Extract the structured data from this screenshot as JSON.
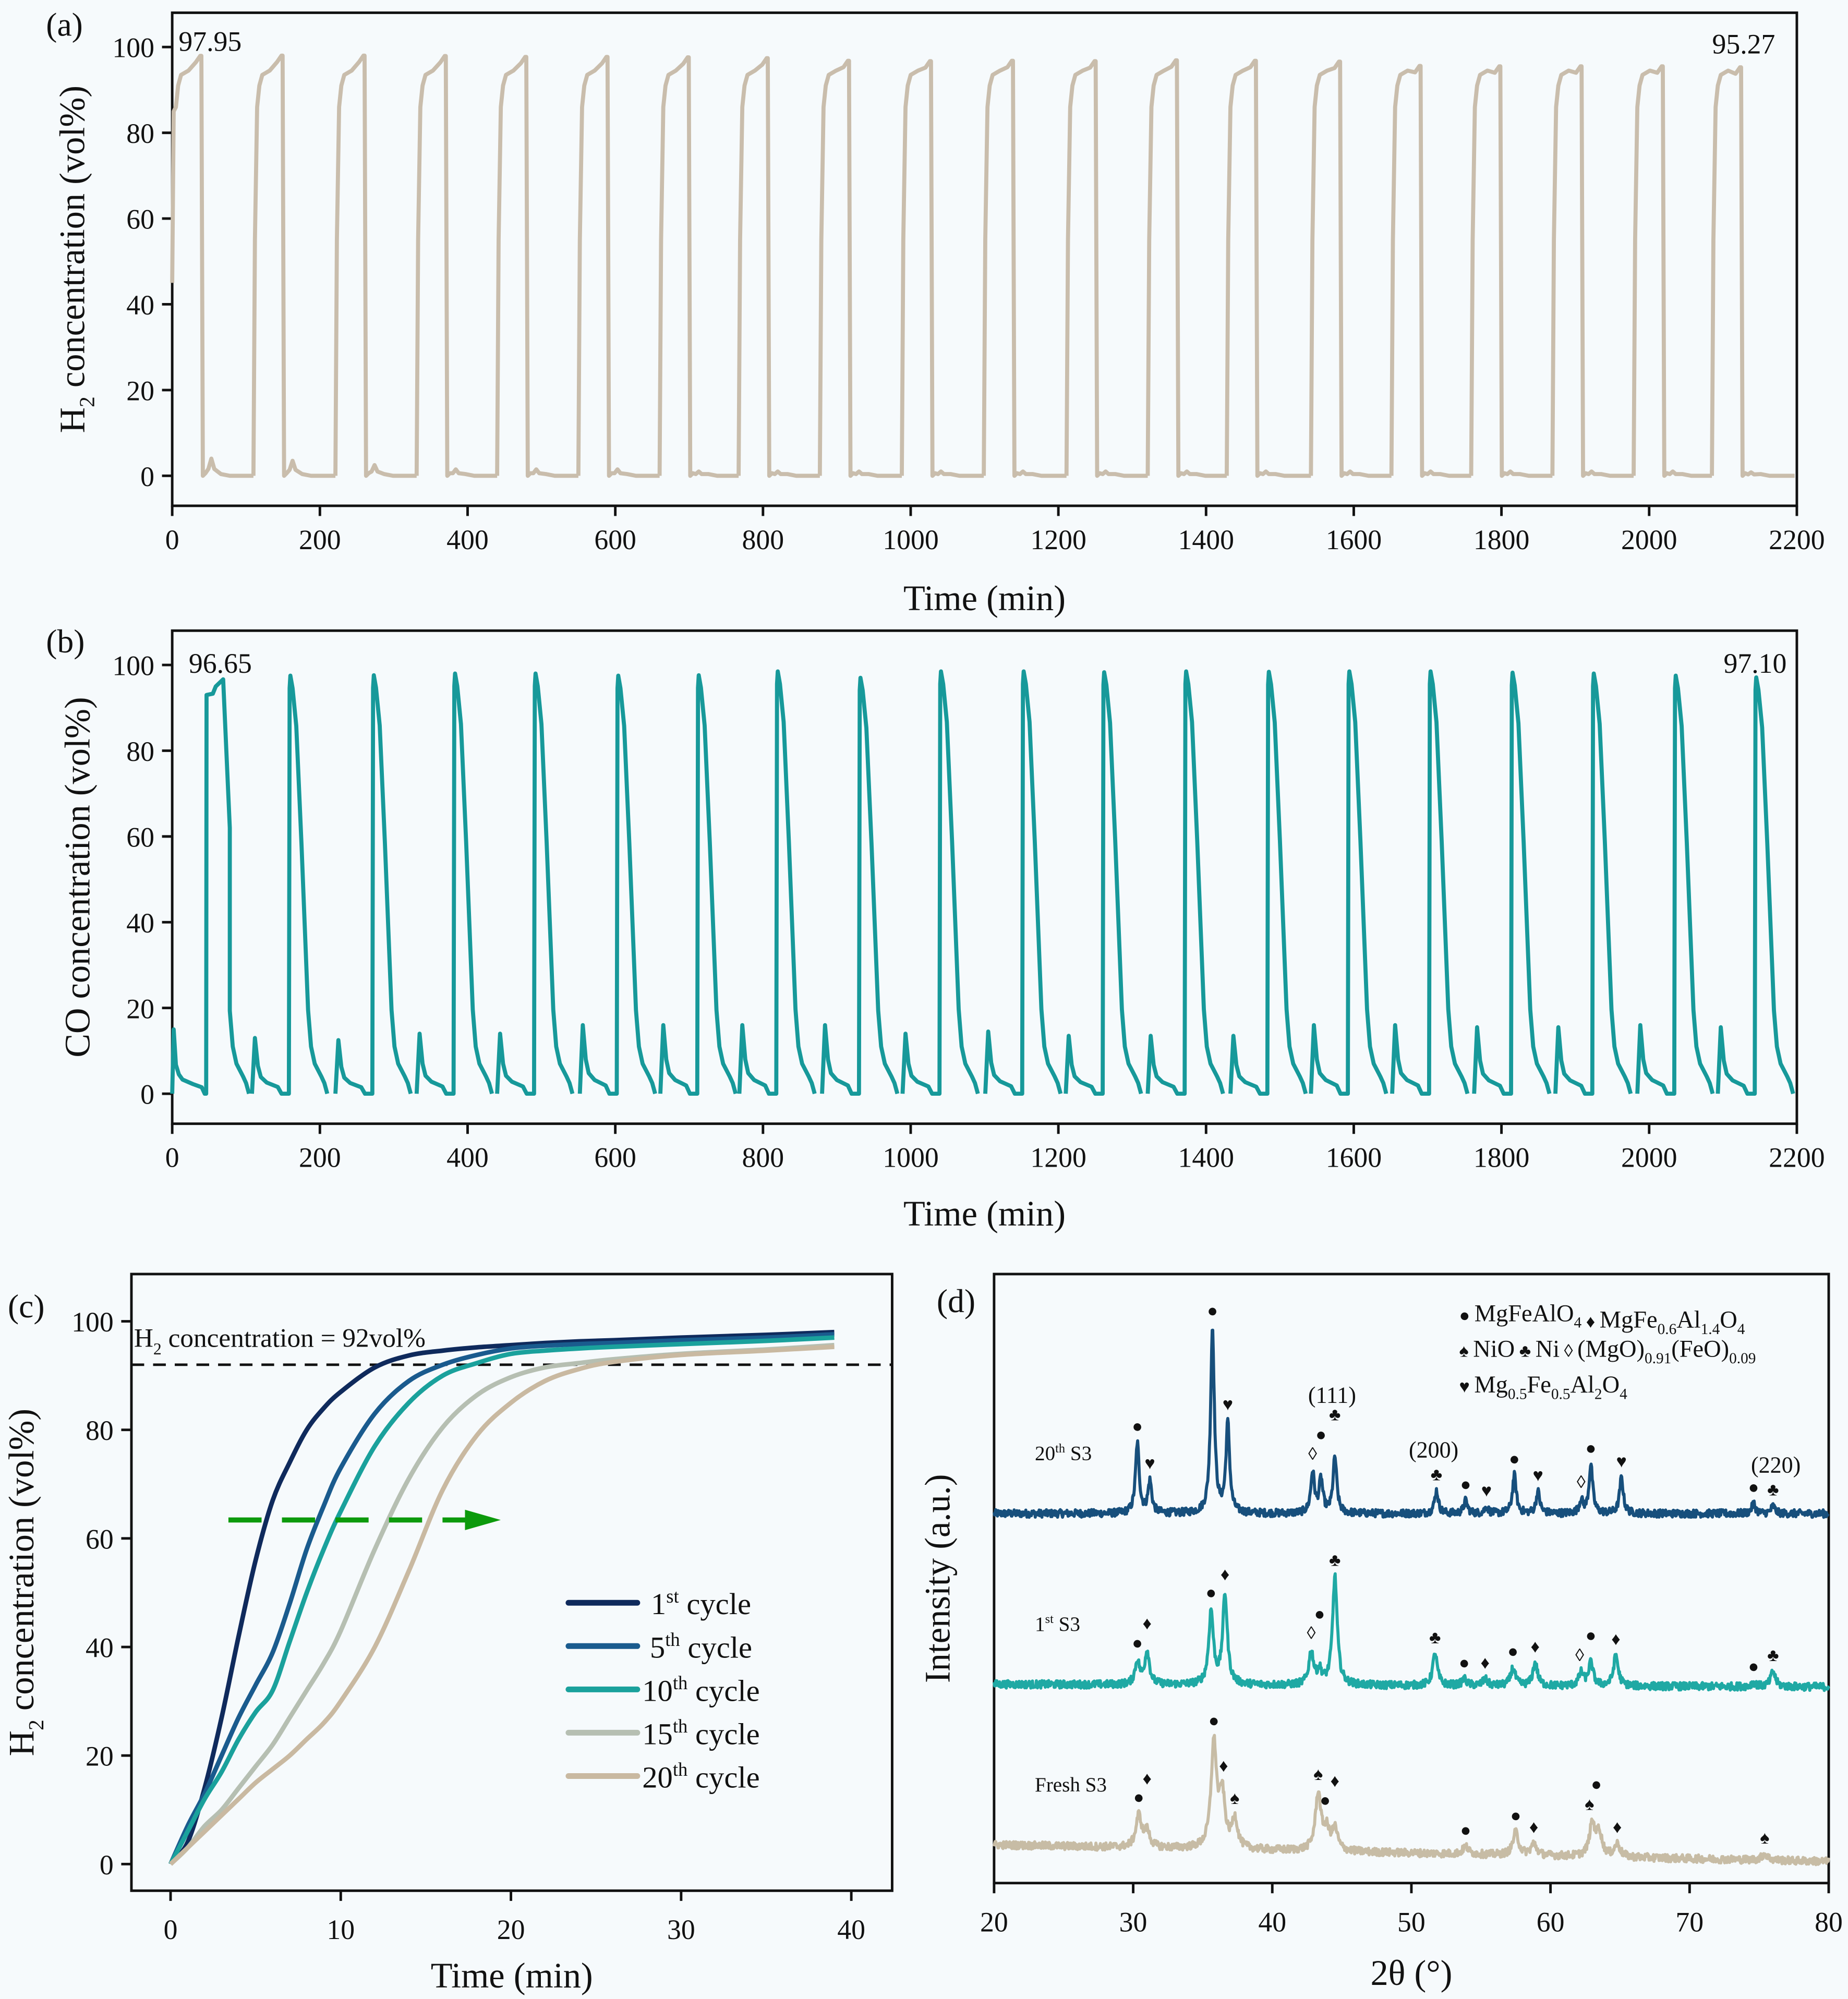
{
  "chart_data": [
    {
      "panel_label": "(a)",
      "type": "line",
      "xlabel": "Time (min)",
      "ylabel": {
        "main": "H",
        "sub": "2",
        "rest": " concentration (vol%)"
      },
      "xlim": [
        0,
        2200
      ],
      "ylim": [
        -7,
        108
      ],
      "xticks": [
        0,
        200,
        400,
        600,
        800,
        1000,
        1200,
        1400,
        1600,
        1800,
        2000,
        2200
      ],
      "yticks": [
        0,
        20,
        40,
        60,
        80,
        100
      ],
      "color": "#c9bdac",
      "annotations": [
        {
          "text": "97.95",
          "position": "top-left"
        },
        {
          "text": "95.27",
          "position": "top-right"
        }
      ],
      "cycles": {
        "start_time": [
          0,
          110,
          221,
          331,
          440,
          550,
          660,
          767,
          877,
          988,
          1099,
          1211,
          1321,
          1428,
          1542,
          1651,
          1759,
          1869,
          1979,
          2085
        ],
        "peak": [
          97.95,
          98.0,
          98.0,
          97.9,
          97.7,
          97.7,
          97.6,
          97.4,
          96.8,
          96.7,
          96.8,
          96.7,
          96.9,
          96.8,
          96.6,
          95.6,
          95.5,
          95.5,
          95.5,
          95.27
        ],
        "post_peak_bump": [
          4,
          3.5,
          2.5,
          1.5,
          1.5,
          1.5,
          1,
          1,
          1,
          1,
          1,
          1,
          1,
          1,
          1,
          1,
          1,
          1,
          1,
          0.8
        ]
      }
    },
    {
      "panel_label": "(b)",
      "type": "line",
      "xlabel": "Time (min)",
      "ylabel": {
        "main": "CO concentration (vol%)"
      },
      "xlim": [
        0,
        2200
      ],
      "ylim": [
        -7,
        108
      ],
      "xticks": [
        0,
        200,
        400,
        600,
        800,
        1000,
        1200,
        1400,
        1600,
        1800,
        2000,
        2200
      ],
      "yticks": [
        0,
        20,
        40,
        60,
        80,
        100
      ],
      "color": "#17999a",
      "annotations": [
        {
          "text": "96.65",
          "position": "top-left"
        },
        {
          "text": "97.10",
          "position": "top-right"
        }
      ],
      "cycles": {
        "peak_time": [
          69,
          160,
          273,
          383,
          492,
          604,
          713,
          820,
          932,
          1041,
          1153,
          1262,
          1373,
          1485,
          1594,
          1704,
          1815,
          1925,
          2036,
          2145
        ],
        "peak": [
          96.65,
          97.5,
          97.6,
          98.0,
          98.0,
          97.5,
          97.6,
          98.5,
          97.0,
          98.5,
          98.5,
          98.3,
          98.5,
          98.4,
          98.5,
          98.5,
          98.2,
          98.0,
          97.5,
          97.1
        ],
        "pre_peak_bump": [
          15,
          13,
          12.5,
          14,
          14,
          16,
          16,
          16,
          16,
          14,
          14.5,
          13.5,
          13.5,
          13.5,
          16,
          16,
          15.5,
          15.5,
          16,
          15.5
        ]
      }
    },
    {
      "panel_label": "(c)",
      "type": "line",
      "xlabel": "Time (min)",
      "ylabel": {
        "main": "H",
        "sub": "2",
        "rest": " concentration (vol%)"
      },
      "xlim": [
        -2.3,
        42.4
      ],
      "ylim": [
        -4.9,
        108.7
      ],
      "xticks": [
        0,
        10,
        20,
        30,
        40
      ],
      "yticks": [
        0,
        20,
        40,
        60,
        80,
        100
      ],
      "reference_line": {
        "y": 92,
        "style": "dashed",
        "color": "#111111",
        "label": {
          "main": "H",
          "sub": "2",
          "rest": " concentration = 92vol%"
        }
      },
      "trend_arrow": {
        "color": "#0c9a0c",
        "direction": "right",
        "style": "dashed"
      },
      "legend_position": "center-right",
      "x": [
        0,
        1,
        2,
        3,
        4,
        5,
        6,
        7,
        8,
        9,
        10,
        12,
        14,
        16,
        18,
        20,
        22,
        24,
        26,
        30,
        35,
        39
      ],
      "series": [
        {
          "label": {
            "num": "1",
            "sup": "st",
            "text": " cycle"
          },
          "color": "#0f2a5c",
          "values": [
            0,
            4,
            14,
            27,
            42,
            56,
            67,
            74,
            80,
            84,
            87,
            91.5,
            93.7,
            94.6,
            95.2,
            95.6,
            96,
            96.3,
            96.5,
            97,
            97.5,
            98
          ]
        },
        {
          "label": {
            "num": "5",
            "sup": "th",
            "text": " cycle"
          },
          "color": "#1a5b8e",
          "values": [
            0,
            7,
            13,
            20,
            27,
            33,
            39,
            48,
            58,
            66,
            73,
            83,
            89,
            92,
            93.8,
            95,
            95.5,
            95.8,
            96,
            96.5,
            97,
            97.6
          ]
        },
        {
          "label": {
            "num": "10",
            "sup": "th",
            "text": " cycle"
          },
          "color": "#1aa19c",
          "values": [
            0,
            6,
            12,
            17,
            23,
            28,
            32,
            41,
            50,
            58,
            65,
            77,
            85,
            90,
            92.3,
            94,
            94.6,
            95,
            95.3,
            95.8,
            96.4,
            97
          ]
        },
        {
          "label": {
            "num": "15",
            "sup": "th",
            "text": " cycle"
          },
          "color": "#b6bfb2",
          "values": [
            0,
            3,
            7,
            10,
            14,
            18,
            22,
            27,
            32,
            37,
            43,
            58,
            71,
            80.5,
            86.4,
            89.7,
            91.5,
            92.3,
            93,
            94,
            94.8,
            95.6
          ]
        },
        {
          "label": {
            "num": "20",
            "sup": "th",
            "text": " cycle"
          },
          "color": "#c9b9a1",
          "values": [
            0,
            3,
            6,
            9,
            12,
            15,
            17.5,
            20,
            23,
            26,
            30,
            40,
            54,
            69,
            79,
            85,
            89,
            91.2,
            92.5,
            93.8,
            94.6,
            95.3
          ]
        }
      ]
    },
    {
      "panel_label": "(d)",
      "type": "line",
      "xlabel": "2θ (°)",
      "ylabel": {
        "main": "Intensity (a.u.)"
      },
      "xlim": [
        20,
        80
      ],
      "ylim": [
        0,
        478
      ],
      "xticks": [
        20,
        30,
        40,
        50,
        60,
        70,
        80
      ],
      "symbols": {
        "dot": "●",
        "diamond": "♦",
        "spade": "♠",
        "club": "♣",
        "open-diamond": "◊",
        "heart": "♥"
      },
      "legend_position": "top-right",
      "legend": [
        [
          {
            "symbol": "dot",
            "formula": [
              {
                "t": "MgFeAlO"
              },
              {
                "s": "4"
              }
            ]
          },
          {
            "symbol": "diamond",
            "formula": [
              {
                "t": "MgFe"
              },
              {
                "s": "0.6"
              },
              {
                "t": "Al"
              },
              {
                "s": "1.4"
              },
              {
                "t": "O"
              },
              {
                "s": "4"
              }
            ]
          }
        ],
        [
          {
            "symbol": "spade",
            "formula": [
              {
                "t": "NiO"
              }
            ]
          },
          {
            "symbol": "club",
            "formula": [
              {
                "t": "Ni"
              }
            ]
          },
          {
            "symbol": "open-diamond",
            "formula": [
              {
                "t": "(MgO)"
              },
              {
                "s": "0.91"
              },
              {
                "t": "(FeO)"
              },
              {
                "s": "0.09"
              }
            ]
          }
        ],
        [
          {
            "symbol": "heart",
            "formula": [
              {
                "t": "Mg"
              },
              {
                "s": "0.5"
              },
              {
                "t": "Fe"
              },
              {
                "s": "0.5"
              },
              {
                "t": "Al"
              },
              {
                "s": "2"
              },
              {
                "t": "O"
              },
              {
                "s": "4"
              }
            ]
          }
        ]
      ],
      "patterns": [
        {
          "label": {
            "num": "20",
            "sup": "th",
            "text": " S3"
          },
          "color": "#174f7c",
          "baseline": [
            290,
            290
          ],
          "peaks": [
            [
              30.3,
              55
            ],
            [
              31.2,
              25
            ],
            [
              35.7,
              145
            ],
            [
              36.8,
              70
            ],
            [
              42.9,
              32
            ],
            [
              43.5,
              26
            ],
            [
              44.5,
              44
            ],
            [
              51.8,
              18
            ],
            [
              53.9,
              10
            ],
            [
              55.4,
              5
            ],
            [
              57.4,
              30
            ],
            [
              59.1,
              17
            ],
            [
              62.2,
              10
            ],
            [
              62.9,
              38
            ],
            [
              65.1,
              28
            ],
            [
              74.6,
              8
            ],
            [
              76.0,
              6
            ]
          ],
          "markers": [
            [
              30.3,
              "dot"
            ],
            [
              31.2,
              "heart"
            ],
            [
              35.7,
              "dot"
            ],
            [
              36.8,
              "heart"
            ],
            [
              42.9,
              "open-diamond"
            ],
            [
              43.5,
              "dot"
            ],
            [
              44.5,
              "club"
            ],
            [
              51.8,
              "club"
            ],
            [
              53.9,
              "dot"
            ],
            [
              55.4,
              "heart"
            ],
            [
              57.4,
              "dot"
            ],
            [
              59.1,
              "heart"
            ],
            [
              62.2,
              "open-diamond"
            ],
            [
              62.9,
              "dot"
            ],
            [
              65.1,
              "heart"
            ],
            [
              74.6,
              "dot"
            ],
            [
              76.0,
              "club"
            ]
          ],
          "hkl_labels": [
            {
              "text": "(111)",
              "two_theta": 44.3
            },
            {
              "text": "(200)",
              "two_theta": 51.6
            },
            {
              "text": "(220)",
              "two_theta": 76.2
            }
          ]
        },
        {
          "label": {
            "num": "1",
            "sup": "st",
            "text": " S3"
          },
          "color": "#1fa9a4",
          "baseline": [
            156,
            154
          ],
          "peaks": [
            [
              30.3,
              18
            ],
            [
              31.0,
              26
            ],
            [
              35.6,
              57
            ],
            [
              36.6,
              70
            ],
            [
              42.8,
              26
            ],
            [
              43.4,
              10
            ],
            [
              44.5,
              85
            ],
            [
              51.7,
              25
            ],
            [
              53.8,
              5
            ],
            [
              55.3,
              5
            ],
            [
              57.3,
              14
            ],
            [
              58.9,
              18
            ],
            [
              62.2,
              10
            ],
            [
              62.9,
              18
            ],
            [
              64.7,
              24
            ],
            [
              74.6,
              3
            ],
            [
              76.0,
              12
            ]
          ],
          "markers": [
            [
              30.3,
              "dot"
            ],
            [
              31.0,
              "diamond"
            ],
            [
              35.6,
              "dot"
            ],
            [
              36.6,
              "diamond"
            ],
            [
              42.8,
              "open-diamond"
            ],
            [
              43.4,
              "dot"
            ],
            [
              44.5,
              "club"
            ],
            [
              51.7,
              "club"
            ],
            [
              53.8,
              "dot"
            ],
            [
              55.3,
              "diamond"
            ],
            [
              57.3,
              "dot"
            ],
            [
              58.9,
              "diamond"
            ],
            [
              62.1,
              "open-diamond"
            ],
            [
              62.9,
              "dot"
            ],
            [
              64.7,
              "diamond"
            ],
            [
              74.6,
              "dot"
            ],
            [
              76.0,
              "club"
            ]
          ],
          "hkl_labels": []
        },
        {
          "label": {
            "text": "Fresh S3"
          },
          "color": "#c7bca5",
          "baseline": [
            30,
            17
          ],
          "peaks": [
            [
              30.4,
              25
            ],
            [
              31.0,
              12
            ],
            [
              35.8,
              82
            ],
            [
              36.4,
              40
            ],
            [
              37.3,
              23
            ],
            [
              43.3,
              45
            ],
            [
              43.9,
              15
            ],
            [
              44.5,
              17
            ],
            [
              53.9,
              6
            ],
            [
              57.5,
              18
            ],
            [
              58.8,
              9
            ],
            [
              63.0,
              25
            ],
            [
              63.5,
              18
            ],
            [
              64.8,
              10
            ],
            [
              75.4,
              5
            ]
          ],
          "markers": [
            [
              30.4,
              "dot"
            ],
            [
              31.0,
              "diamond"
            ],
            [
              35.8,
              "dot"
            ],
            [
              36.5,
              "diamond"
            ],
            [
              37.3,
              "spade"
            ],
            [
              43.3,
              "spade"
            ],
            [
              43.8,
              "dot"
            ],
            [
              44.5,
              "diamond"
            ],
            [
              53.9,
              "dot"
            ],
            [
              57.5,
              "dot"
            ],
            [
              58.8,
              "diamond"
            ],
            [
              62.8,
              "spade"
            ],
            [
              63.3,
              "dot"
            ],
            [
              64.8,
              "diamond"
            ],
            [
              75.4,
              "spade"
            ]
          ],
          "hkl_labels": []
        }
      ]
    }
  ]
}
